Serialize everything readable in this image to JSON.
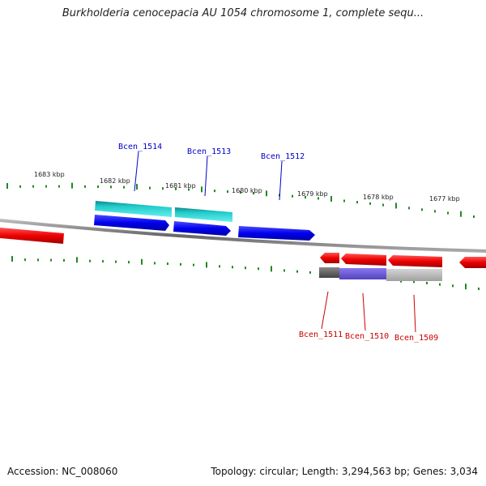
{
  "title": "Burkholderia cenocepacia AU 1054 chromosome 1, complete sequ...",
  "footer": {
    "accession": "Accession: NC_008060",
    "stats": "Topology: circular; Length: 3,294,563 bp; Genes: 3,034"
  },
  "scale_labels": [
    "1683 kbp",
    "1682 kbp",
    "1681 kbp",
    "1680 kbp",
    "1679 kbp",
    "1678 kbp",
    "1677 kbp"
  ],
  "genes": {
    "forward": [
      "Bcen_1514",
      "Bcen_1513",
      "Bcen_1512"
    ],
    "reverse": [
      "Bcen_1511",
      "Bcen_1510",
      "Bcen_1509"
    ]
  },
  "colors": {
    "forward_label": "#0000cc",
    "reverse_label": "#cc0000",
    "forward_gene": "#0000ee",
    "reverse_gene": "#ee0000",
    "highlight_cyan": "#22cccc",
    "highlight_purple": "#7766dd",
    "highlight_gray": "#bbbbbb",
    "highlight_dark": "#666666",
    "ticks": "#228822",
    "backbone": "#888888"
  }
}
